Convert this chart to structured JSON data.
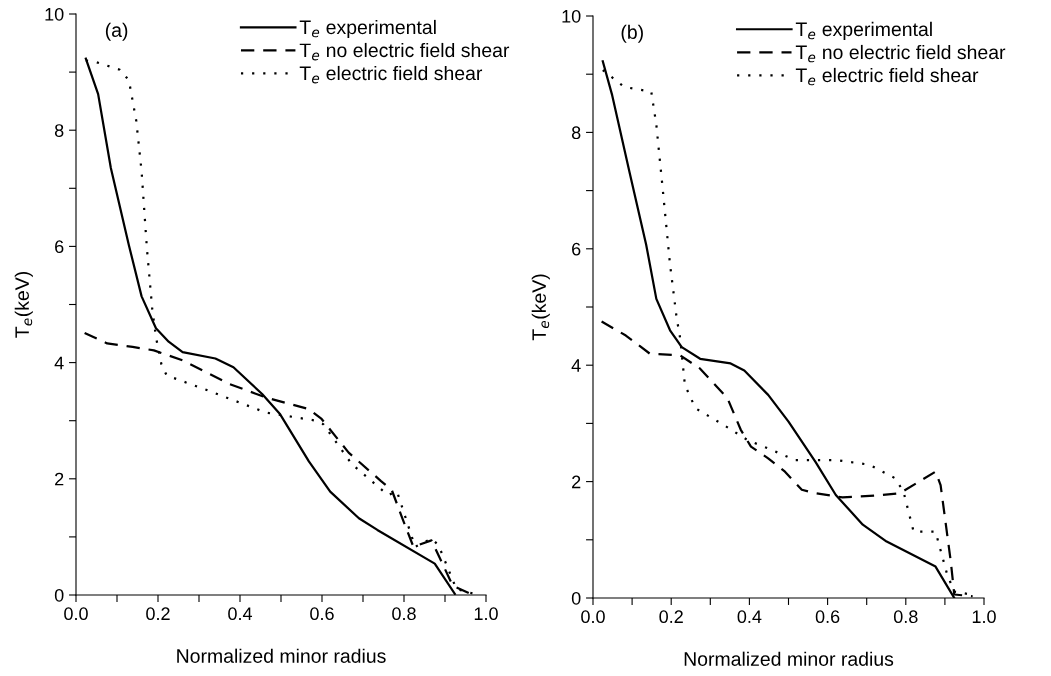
{
  "chart_data": [
    {
      "type": "line",
      "title": "(a)",
      "xlabel": "Normalized minor radius",
      "ylabel": "T$_{e}$(keV)",
      "xlim": [
        0,
        1
      ],
      "ylim": [
        0,
        10
      ],
      "xticks": [
        {
          "value": 0,
          "label": "0.0"
        },
        {
          "value": 0.1,
          "label": null
        },
        0.2,
        {
          "value": 0.3,
          "label": null
        },
        0.4,
        {
          "value": 0.5,
          "label": null
        },
        0.6,
        {
          "value": 0.7,
          "label": null
        },
        0.8,
        {
          "value": 0.9,
          "label": null
        },
        {
          "value": 1,
          "label": "1.0"
        }
      ],
      "yticks": [
        0,
        {
          "value": 1,
          "label": null
        },
        2,
        {
          "value": 3,
          "label": null
        },
        4,
        {
          "value": 5,
          "label": null
        },
        6,
        {
          "value": 7,
          "label": null
        },
        8,
        {
          "value": 9,
          "label": null
        },
        10
      ],
      "legend": "top right",
      "grid": false,
      "marker": "none",
      "series": [
        {
          "name": "T$_{e}$ experimental",
          "color": "#000000",
          "line_style": "solid",
          "x": [
            0.024,
            0.054,
            0.085,
            0.129,
            0.16,
            0.195,
            0.226,
            0.26,
            0.34,
            0.384,
            0.454,
            0.498,
            0.568,
            0.62,
            0.69,
            0.735,
            0.875,
            0.924
          ],
          "values": [
            9.23,
            8.62,
            7.35,
            6.02,
            5.14,
            4.59,
            4.36,
            4.18,
            4.07,
            3.92,
            3.46,
            3.11,
            2.3,
            1.78,
            1.32,
            1.12,
            0.54,
            0.02
          ]
        },
        {
          "name": "T$_{e}$ no electric field shear",
          "color": "#000000",
          "line_style": "dashed",
          "x": [
            0.021,
            0.076,
            0.138,
            0.19,
            0.26,
            0.375,
            0.463,
            0.568,
            0.599,
            0.665,
            0.744,
            0.77,
            0.796,
            0.823,
            0.867,
            0.919,
            0.963,
            0.976
          ],
          "values": [
            4.51,
            4.33,
            4.27,
            4.21,
            4.04,
            3.63,
            3.4,
            3.2,
            3.03,
            2.45,
            1.96,
            1.81,
            1.32,
            0.83,
            0.94,
            0.16,
            0.02,
            0.0
          ]
        },
        {
          "name": "T$_{e}$ electric field shear",
          "color": "#000000",
          "line_style": "dotted",
          "x": [
            0.024,
            0.05,
            0.107,
            0.129,
            0.147,
            0.16,
            0.173,
            0.186,
            0.195,
            0.208,
            0.221,
            0.322,
            0.463,
            0.586,
            0.603,
            0.673,
            0.761,
            0.783,
            0.827,
            0.867,
            0.884,
            0.928,
            0.972
          ],
          "values": [
            9.2,
            9.17,
            9.04,
            8.86,
            8.16,
            7.29,
            5.96,
            4.92,
            4.44,
            3.98,
            3.78,
            3.52,
            3.14,
            3.0,
            2.94,
            2.25,
            1.72,
            1.78,
            0.83,
            0.97,
            0.86,
            0.1,
            0.02
          ]
        }
      ]
    },
    {
      "type": "line",
      "title": "(b)",
      "xlabel": "Normalized minor radius",
      "ylabel": "T$_{e}$(keV)",
      "xlim": [
        0,
        1
      ],
      "ylim": [
        0,
        10
      ],
      "xticks": [
        {
          "value": 0,
          "label": "0.0"
        },
        {
          "value": 0.1,
          "label": null
        },
        0.2,
        {
          "value": 0.3,
          "label": null
        },
        0.4,
        {
          "value": 0.5,
          "label": null
        },
        0.6,
        {
          "value": 0.7,
          "label": null
        },
        0.8,
        {
          "value": 0.9,
          "label": null
        },
        {
          "value": 1,
          "label": "1.0"
        }
      ],
      "yticks": [
        0,
        {
          "value": 1,
          "label": null
        },
        2,
        {
          "value": 3,
          "label": null
        },
        4,
        {
          "value": 5,
          "label": null
        },
        6,
        {
          "value": 7,
          "label": null
        },
        8,
        {
          "value": 9,
          "label": null
        },
        10
      ],
      "legend": "top right",
      "grid": false,
      "marker": "none",
      "series": [
        {
          "name": "T$_{e}$ experimental",
          "color": "#000000",
          "line_style": "solid",
          "x": [
            0.025,
            0.049,
            0.093,
            0.136,
            0.162,
            0.197,
            0.227,
            0.274,
            0.352,
            0.387,
            0.448,
            0.5,
            0.569,
            0.621,
            0.69,
            0.751,
            0.876,
            0.924
          ],
          "values": [
            9.22,
            8.64,
            7.33,
            6.07,
            5.14,
            4.6,
            4.31,
            4.11,
            4.03,
            3.91,
            3.49,
            3.03,
            2.34,
            1.77,
            1.26,
            0.97,
            0.54,
            0.0
          ]
        },
        {
          "name": "T$_{e}$ no electric field shear",
          "color": "#000000",
          "line_style": "dashed",
          "x": [
            0.022,
            0.084,
            0.145,
            0.223,
            0.274,
            0.344,
            0.378,
            0.404,
            0.448,
            0.491,
            0.534,
            0.569,
            0.638,
            0.725,
            0.785,
            0.876,
            0.889,
            0.915,
            0.924,
            0.971
          ],
          "values": [
            4.75,
            4.51,
            4.2,
            4.17,
            3.94,
            3.43,
            2.89,
            2.6,
            2.4,
            2.17,
            1.86,
            1.8,
            1.73,
            1.76,
            1.8,
            2.17,
            1.94,
            0.63,
            0.06,
            0.03
          ]
        },
        {
          "name": "T$_{e}$ electric field shear",
          "color": "#000000",
          "line_style": "dotted",
          "x": [
            0.025,
            0.08,
            0.149,
            0.162,
            0.179,
            0.197,
            0.214,
            0.223,
            0.235,
            0.262,
            0.335,
            0.396,
            0.448,
            0.517,
            0.621,
            0.707,
            0.772,
            0.794,
            0.82,
            0.876,
            0.906,
            0.924,
            0.967
          ],
          "values": [
            9.07,
            8.78,
            8.7,
            8.13,
            6.98,
            5.73,
            4.81,
            4.46,
            3.66,
            3.26,
            2.97,
            2.71,
            2.57,
            2.37,
            2.37,
            2.29,
            2.06,
            1.83,
            1.14,
            1.14,
            0.4,
            0.11,
            0.06
          ]
        }
      ]
    }
  ]
}
